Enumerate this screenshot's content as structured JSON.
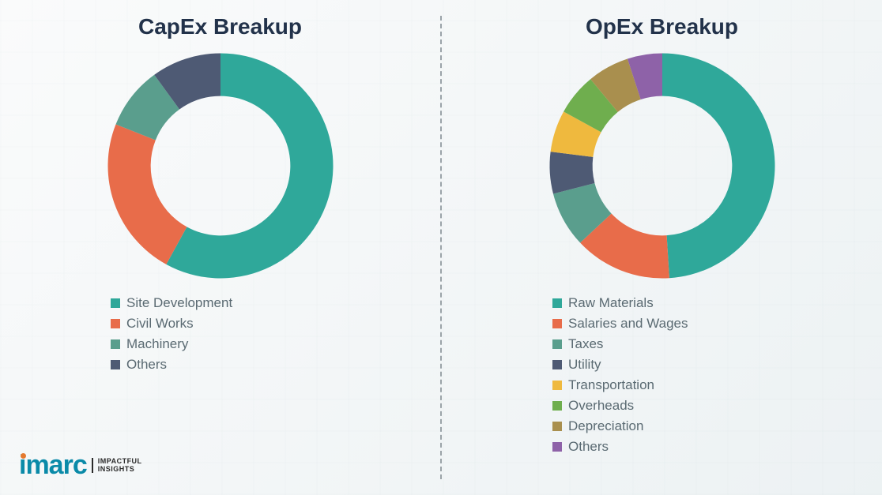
{
  "background_color": "#f4f6f7",
  "divider_color": "#9aa3a8",
  "capex": {
    "title": "CapEx Breakup",
    "title_color": "#22324a",
    "title_fontsize": 28,
    "type": "donut",
    "inner_radius_pct": 62,
    "start_angle_deg": 0,
    "slices": [
      {
        "label": "Site Development",
        "value": 58,
        "color": "#2fa89a"
      },
      {
        "label": "Civil Works",
        "value": 23,
        "color": "#e86c4a"
      },
      {
        "label": "Machinery",
        "value": 9,
        "color": "#5a9e8d"
      },
      {
        "label": "Others",
        "value": 10,
        "color": "#4e5a74"
      }
    ],
    "legend_text_color": "#5a6a72",
    "legend_fontsize": 17
  },
  "opex": {
    "title": "OpEx Breakup",
    "title_color": "#22324a",
    "title_fontsize": 28,
    "type": "donut",
    "inner_radius_pct": 62,
    "start_angle_deg": 0,
    "slices": [
      {
        "label": "Raw Materials",
        "value": 49,
        "color": "#2fa89a"
      },
      {
        "label": "Salaries and Wages",
        "value": 14,
        "color": "#e86c4a"
      },
      {
        "label": "Taxes",
        "value": 8,
        "color": "#5a9e8d"
      },
      {
        "label": "Utility",
        "value": 6,
        "color": "#4e5a74"
      },
      {
        "label": "Transportation",
        "value": 6,
        "color": "#efb93e"
      },
      {
        "label": "Overheads",
        "value": 6,
        "color": "#6fae4e"
      },
      {
        "label": "Depreciation",
        "value": 6,
        "color": "#a98f4e"
      },
      {
        "label": "Others",
        "value": 5,
        "color": "#8e62a8"
      }
    ],
    "legend_text_color": "#5a6a72",
    "legend_fontsize": 17
  },
  "logo": {
    "brand": "imarc",
    "brand_color": "#0a8aa8",
    "dot_color": "#e57a2e",
    "tagline_line1": "IMPACTFUL",
    "tagline_line2": "INSIGHTS",
    "tagline_color": "#2a2a2a"
  }
}
